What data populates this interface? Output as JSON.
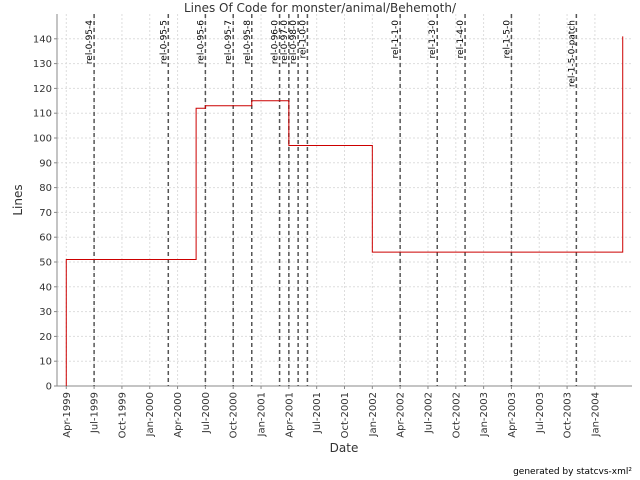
{
  "chart_data": {
    "type": "step",
    "title": "Lines Of Code for monster/animal/Behemoth/",
    "x_label": "Date",
    "y_label": "Lines",
    "series": [
      {
        "name": "Lines",
        "color": "#cc0000",
        "x": [
          "1999-04",
          "1999-04",
          "2000-06",
          "2000-07",
          "2000-12",
          "2001-04",
          "2002-01",
          "2004-04"
        ],
        "values": [
          0,
          51,
          112,
          113,
          115,
          97,
          54,
          141
        ]
      }
    ],
    "xlim": [
      "1999-03",
      "2004-05"
    ],
    "xticks": [
      {
        "value": "1999-04",
        "label": "Apr-1999"
      },
      {
        "value": "1999-07",
        "label": "Jul-1999"
      },
      {
        "value": "1999-10",
        "label": "Oct-1999"
      },
      {
        "value": "2000-01",
        "label": "Jan-2000"
      },
      {
        "value": "2000-04",
        "label": "Apr-2000"
      },
      {
        "value": "2000-07",
        "label": "Jul-2000"
      },
      {
        "value": "2000-10",
        "label": "Oct-2000"
      },
      {
        "value": "2001-01",
        "label": "Jan-2001"
      },
      {
        "value": "2001-04",
        "label": "Apr-2001"
      },
      {
        "value": "2001-07",
        "label": "Jul-2001"
      },
      {
        "value": "2001-10",
        "label": "Oct-2001"
      },
      {
        "value": "2002-01",
        "label": "Jan-2002"
      },
      {
        "value": "2002-04",
        "label": "Apr-2002"
      },
      {
        "value": "2002-07",
        "label": "Jul-2002"
      },
      {
        "value": "2002-10",
        "label": "Oct-2002"
      },
      {
        "value": "2003-01",
        "label": "Jan-2003"
      },
      {
        "value": "2003-04",
        "label": "Apr-2003"
      },
      {
        "value": "2003-07",
        "label": "Jul-2003"
      },
      {
        "value": "2003-10",
        "label": "Oct-2003"
      },
      {
        "value": "2004-01",
        "label": "Jan-2004"
      }
    ],
    "ylim": [
      0,
      150
    ],
    "yticks": [
      0,
      10,
      20,
      30,
      40,
      50,
      60,
      70,
      80,
      90,
      100,
      110,
      120,
      130,
      140
    ],
    "grid": true,
    "markers": [
      {
        "x": "1999-07",
        "label": "rel-0-95-4"
      },
      {
        "x": "2000-03",
        "label": "rel-0-95-5"
      },
      {
        "x": "2000-07",
        "label": "rel-0-95-6"
      },
      {
        "x": "2000-10",
        "label": "rel-0-95-7"
      },
      {
        "x": "2000-12",
        "label": "rel-0-95-8"
      },
      {
        "x": "2001-03",
        "label": "rel-0-96-0"
      },
      {
        "x": "2001-04",
        "label": "rel-0-97-0"
      },
      {
        "x": "2001-05",
        "label": "rel-0-98-0"
      },
      {
        "x": "2001-06",
        "label": "rel-1-0-0"
      },
      {
        "x": "2002-04",
        "label": "rel-1-1-0"
      },
      {
        "x": "2002-08",
        "label": "rel-1-3-0"
      },
      {
        "x": "2002-11",
        "label": "rel-1-4-0"
      },
      {
        "x": "2003-04",
        "label": "rel-1-5-0"
      },
      {
        "x": "2003-11",
        "label": "rel-1-5-0-patch"
      }
    ],
    "footer": "generated by statcvs-xml²"
  }
}
